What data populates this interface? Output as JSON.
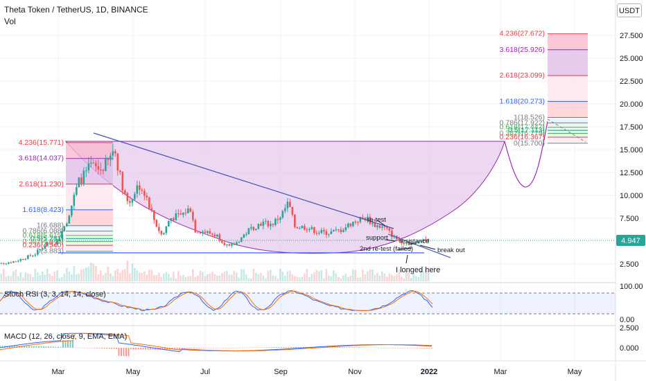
{
  "header": {
    "title": "Theta Token / TetherUS, 1D, BINANCE",
    "subtitle": "Vol",
    "currency": "USDT"
  },
  "colors": {
    "price_line": "#26a69a",
    "price_badge": "#26a69a",
    "purple": "#9c27b0",
    "blue_line": "#3f51b5",
    "stoch_k": "#2962ff",
    "stoch_d": "#ff6d00",
    "macd_line": "#2962ff",
    "signal_line": "#ff6d00"
  },
  "chart_data": {
    "type": "candlestick",
    "symbol": "Theta Token / TetherUS, 1D, BINANCE",
    "last_price": "4.947",
    "y_ticks": [
      "27.500",
      "25.000",
      "22.500",
      "20.000",
      "17.500",
      "15.000",
      "12.500",
      "10.000",
      "7.500",
      "2.500"
    ],
    "x_ticks": [
      "Mar",
      "May",
      "Jul",
      "Sep",
      "Nov",
      "2022",
      "Mar",
      "May"
    ],
    "close_path": [
      [
        "2021-01-05",
        2.4
      ],
      [
        "2021-01-25",
        2.8
      ],
      [
        "2021-02-10",
        3.6
      ],
      [
        "2021-02-20",
        4.8
      ],
      [
        "2021-02-28",
        4.9
      ],
      [
        "2021-03-08",
        7.2
      ],
      [
        "2021-03-18",
        11.5
      ],
      [
        "2021-03-28",
        13.2
      ],
      [
        "2021-04-05",
        12.8
      ],
      [
        "2021-04-12",
        13.8
      ],
      [
        "2021-04-16",
        15.3
      ],
      [
        "2021-04-22",
        11.5
      ],
      [
        "2021-04-28",
        9.0
      ],
      [
        "2021-05-06",
        11.2
      ],
      [
        "2021-05-12",
        10.2
      ],
      [
        "2021-05-20",
        7.0
      ],
      [
        "2021-05-26",
        5.5
      ],
      [
        "2021-06-01",
        7.5
      ],
      [
        "2021-06-10",
        7.8
      ],
      [
        "2021-06-18",
        8.6
      ],
      [
        "2021-06-22",
        6.2
      ],
      [
        "2021-06-30",
        6.0
      ],
      [
        "2021-07-10",
        5.6
      ],
      [
        "2021-07-20",
        4.3
      ],
      [
        "2021-07-26",
        4.8
      ],
      [
        "2021-08-06",
        6.3
      ],
      [
        "2021-08-16",
        7.0
      ],
      [
        "2021-08-24",
        6.8
      ],
      [
        "2021-09-01",
        7.8
      ],
      [
        "2021-09-07",
        9.2
      ],
      [
        "2021-09-12",
        6.6
      ],
      [
        "2021-09-22",
        6.5
      ],
      [
        "2021-10-01",
        6.0
      ],
      [
        "2021-10-10",
        5.9
      ],
      [
        "2021-10-20",
        6.2
      ],
      [
        "2021-11-01",
        7.2
      ],
      [
        "2021-11-10",
        7.6
      ],
      [
        "2021-11-16",
        6.8
      ],
      [
        "2021-11-26",
        6.4
      ],
      [
        "2021-12-04",
        5.3
      ],
      [
        "2021-12-12",
        4.9
      ],
      [
        "2021-12-20",
        4.6
      ],
      [
        "2021-12-26",
        5.3
      ],
      [
        "2022-01-02",
        4.95
      ]
    ],
    "fib_left": [
      {
        "label": "4.236(15.771)",
        "color": "#f23645"
      },
      {
        "label": "3.618(14.037)",
        "color": "#9c27b0"
      },
      {
        "label": "2.618(11.230)",
        "color": "#f23645"
      },
      {
        "label": "1.618(8.423)",
        "color": "#2962ff"
      },
      {
        "label": "1(6.688)",
        "color": "#787b86"
      },
      {
        "label": "0.786(6.088)",
        "color": "#787b86"
      },
      {
        "label": "0.618(5.615)",
        "color": "#4caf50"
      },
      {
        "label": "0.5(5.281)",
        "color": "#089981"
      },
      {
        "label": "0.382(4.949)",
        "color": "#4caf50"
      },
      {
        "label": "0.236(4.540)",
        "color": "#f23645"
      },
      {
        "label": "0(3.883)",
        "color": "#787b86"
      }
    ],
    "fib_right": [
      {
        "label": "4.236(27.672)",
        "color": "#f23645"
      },
      {
        "label": "3.618(25.926)",
        "color": "#9c27b0"
      },
      {
        "label": "2.618(23.099)",
        "color": "#f23645"
      },
      {
        "label": "1.618(20.273)",
        "color": "#2962ff"
      },
      {
        "label": "1(18.526)",
        "color": "#787b86"
      },
      {
        "label": "0.786(17.922)",
        "color": "#787b86"
      },
      {
        "label": "0.618(17.447)",
        "color": "#4caf50"
      },
      {
        "label": "0.5(17.113)",
        "color": "#089981"
      },
      {
        "label": "0.382(16.779)",
        "color": "#4caf50"
      },
      {
        "label": "0.236(16.367)",
        "color": "#f23645"
      },
      {
        "label": "0(15.700)",
        "color": "#787b86"
      }
    ],
    "annotations": {
      "retest": "re-test",
      "support": "support",
      "resistance": "resistance",
      "second_retest": "2nd re-test (failed)",
      "breakout": "break out",
      "longed": "I longed here"
    },
    "stoch_rsi": {
      "label": "Stoch RSI (3, 3, 14, 14, close)",
      "y_ticks": [
        "100.00",
        "0.00"
      ]
    },
    "macd": {
      "label": "MACD (12, 26, close, 9, EMA, EMA)",
      "y_ticks": [
        "2.500",
        "0.000"
      ]
    }
  }
}
